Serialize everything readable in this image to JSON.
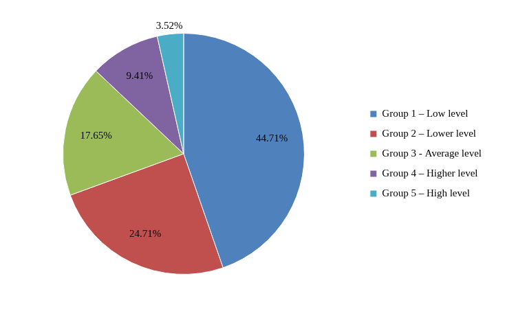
{
  "chart_data": {
    "type": "pie",
    "categories": [
      "Group 1 – Low level",
      "Group 2 – Lower level",
      "Group 3 - Average level",
      "Group 4 – Higher level",
      "Group 5 – High level"
    ],
    "values": [
      44.71,
      24.71,
      17.65,
      9.41,
      3.52
    ],
    "value_labels": [
      "44.71%",
      "24.71%",
      "17.65%",
      "9.41%",
      "3.52%"
    ],
    "colors": [
      "#4f81bd",
      "#c0504d",
      "#9bbb59",
      "#8064a2",
      "#4bacc6"
    ],
    "data_labels": true,
    "legend": "right"
  }
}
